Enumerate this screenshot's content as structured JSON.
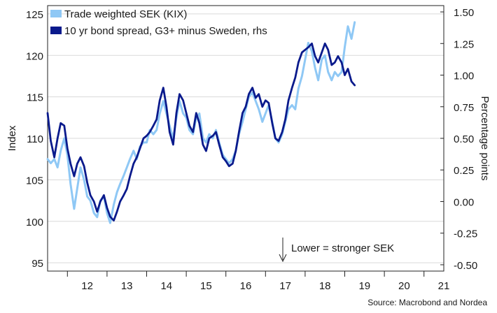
{
  "chart_data": {
    "type": "line",
    "x_unit": "year",
    "xlim": [
      2011.5,
      2021.5
    ],
    "x_ticks": [
      "12",
      "13",
      "14",
      "15",
      "16",
      "17",
      "18",
      "19",
      "20",
      "21"
    ],
    "left_axis": {
      "label": "Index",
      "ylim": [
        94,
        126
      ],
      "ticks": [
        "95",
        "100",
        "105",
        "110",
        "115",
        "120",
        "125"
      ]
    },
    "right_axis": {
      "label": "Percentage points",
      "ylim": [
        -0.55,
        1.55
      ],
      "ticks": [
        "-0.50",
        "-0.25",
        "0.00",
        "0.25",
        "0.50",
        "0.75",
        "1.00",
        "1.25",
        "1.50"
      ]
    },
    "grid": "horizontal",
    "legend_position": "top-left",
    "series": [
      {
        "name": "Trade weighted SEK (KIX)",
        "axis": "left",
        "color": "#8fc8f5",
        "x": [
          2011.5,
          2011.58,
          2011.67,
          2011.75,
          2011.83,
          2011.92,
          2012.0,
          2012.08,
          2012.17,
          2012.25,
          2012.33,
          2012.42,
          2012.5,
          2012.58,
          2012.67,
          2012.75,
          2012.83,
          2012.92,
          2013.0,
          2013.08,
          2013.17,
          2013.25,
          2013.33,
          2013.42,
          2013.5,
          2013.58,
          2013.67,
          2013.75,
          2013.83,
          2013.92,
          2014.0,
          2014.08,
          2014.17,
          2014.25,
          2014.33,
          2014.42,
          2014.5,
          2014.58,
          2014.67,
          2014.75,
          2014.83,
          2014.92,
          2015.0,
          2015.08,
          2015.17,
          2015.25,
          2015.33,
          2015.42,
          2015.5,
          2015.58,
          2015.67,
          2015.75,
          2015.83,
          2015.92,
          2016.0,
          2016.08,
          2016.17,
          2016.25,
          2016.33,
          2016.42,
          2016.5,
          2016.58,
          2016.67,
          2016.75,
          2016.83,
          2016.92,
          2017.0,
          2017.08,
          2017.17,
          2017.25,
          2017.33,
          2017.42,
          2017.5,
          2017.58,
          2017.67,
          2017.75,
          2017.83,
          2017.92,
          2018.0,
          2018.08,
          2018.17,
          2018.25,
          2018.33,
          2018.42,
          2018.5,
          2018.58,
          2018.67,
          2018.75,
          2018.83,
          2018.92,
          2019.0,
          2019.08,
          2019.17,
          2019.25
        ],
        "values": [
          107.5,
          107.0,
          107.5,
          106.5,
          108.5,
          110.0,
          108.0,
          104.5,
          101.5,
          104.0,
          106.5,
          105.0,
          103.0,
          102.5,
          101.0,
          100.5,
          102.5,
          103.0,
          101.0,
          99.8,
          102.0,
          103.5,
          104.5,
          105.5,
          106.5,
          107.5,
          108.5,
          107.5,
          109.0,
          109.5,
          109.5,
          111.0,
          110.5,
          111.0,
          113.0,
          114.5,
          113.0,
          111.5,
          110.0,
          112.5,
          114.5,
          113.0,
          112.5,
          111.0,
          110.5,
          112.5,
          113.0,
          110.0,
          109.5,
          110.5,
          110.0,
          111.0,
          109.5,
          108.0,
          107.5,
          107.0,
          107.5,
          108.5,
          110.5,
          112.0,
          113.5,
          115.0,
          115.5,
          114.5,
          113.5,
          112.0,
          113.0,
          114.0,
          112.0,
          110.0,
          109.5,
          110.5,
          112.0,
          113.5,
          114.0,
          113.5,
          116.0,
          117.5,
          119.5,
          121.5,
          120.5,
          118.5,
          117.0,
          119.5,
          120.0,
          118.0,
          117.0,
          118.0,
          117.5,
          118.0,
          121.0,
          123.5,
          122.0,
          124.0
        ]
      },
      {
        "name": "10 yr bond spread, G3+ minus Sweden, rhs",
        "axis": "right",
        "color": "#0a1a8c",
        "x": [
          2011.5,
          2011.58,
          2011.67,
          2011.75,
          2011.83,
          2011.92,
          2012.0,
          2012.08,
          2012.17,
          2012.25,
          2012.33,
          2012.42,
          2012.5,
          2012.58,
          2012.67,
          2012.75,
          2012.83,
          2012.92,
          2013.0,
          2013.08,
          2013.17,
          2013.25,
          2013.33,
          2013.42,
          2013.5,
          2013.58,
          2013.67,
          2013.75,
          2013.83,
          2013.92,
          2014.0,
          2014.08,
          2014.17,
          2014.25,
          2014.33,
          2014.42,
          2014.5,
          2014.58,
          2014.67,
          2014.75,
          2014.83,
          2014.92,
          2015.0,
          2015.08,
          2015.17,
          2015.25,
          2015.33,
          2015.42,
          2015.5,
          2015.58,
          2015.67,
          2015.75,
          2015.83,
          2015.92,
          2016.0,
          2016.08,
          2016.17,
          2016.25,
          2016.33,
          2016.42,
          2016.5,
          2016.58,
          2016.67,
          2016.75,
          2016.83,
          2016.92,
          2017.0,
          2017.08,
          2017.17,
          2017.25,
          2017.33,
          2017.42,
          2017.5,
          2017.58,
          2017.67,
          2017.75,
          2017.83,
          2017.92,
          2018.0,
          2018.08,
          2018.17,
          2018.25,
          2018.33,
          2018.42,
          2018.5,
          2018.58,
          2018.67,
          2018.75,
          2018.83,
          2018.92,
          2019.0,
          2019.08,
          2019.17,
          2019.25
        ],
        "values": [
          0.7,
          0.48,
          0.35,
          0.5,
          0.62,
          0.6,
          0.42,
          0.3,
          0.2,
          0.3,
          0.35,
          0.28,
          0.15,
          0.05,
          0.0,
          -0.08,
          0.0,
          0.05,
          -0.05,
          -0.12,
          -0.15,
          -0.08,
          0.0,
          0.05,
          0.1,
          0.2,
          0.3,
          0.35,
          0.42,
          0.5,
          0.52,
          0.55,
          0.6,
          0.65,
          0.8,
          0.9,
          0.75,
          0.55,
          0.45,
          0.7,
          0.85,
          0.8,
          0.7,
          0.6,
          0.55,
          0.7,
          0.62,
          0.45,
          0.4,
          0.5,
          0.52,
          0.55,
          0.45,
          0.35,
          0.32,
          0.28,
          0.3,
          0.4,
          0.55,
          0.7,
          0.75,
          0.85,
          0.9,
          0.82,
          0.85,
          0.75,
          0.8,
          0.78,
          0.62,
          0.5,
          0.48,
          0.55,
          0.65,
          0.8,
          0.9,
          0.98,
          1.1,
          1.18,
          1.2,
          1.22,
          1.25,
          1.15,
          1.1,
          1.18,
          1.25,
          1.2,
          1.08,
          1.1,
          1.15,
          1.1,
          1.0,
          1.05,
          0.95,
          0.92
        ]
      }
    ],
    "annotations": [
      {
        "text": "Lower = stronger SEK",
        "x": 2017.55,
        "y_right": -0.42
      }
    ]
  },
  "footer": {
    "source": "Source: Macrobond and Nordea"
  }
}
